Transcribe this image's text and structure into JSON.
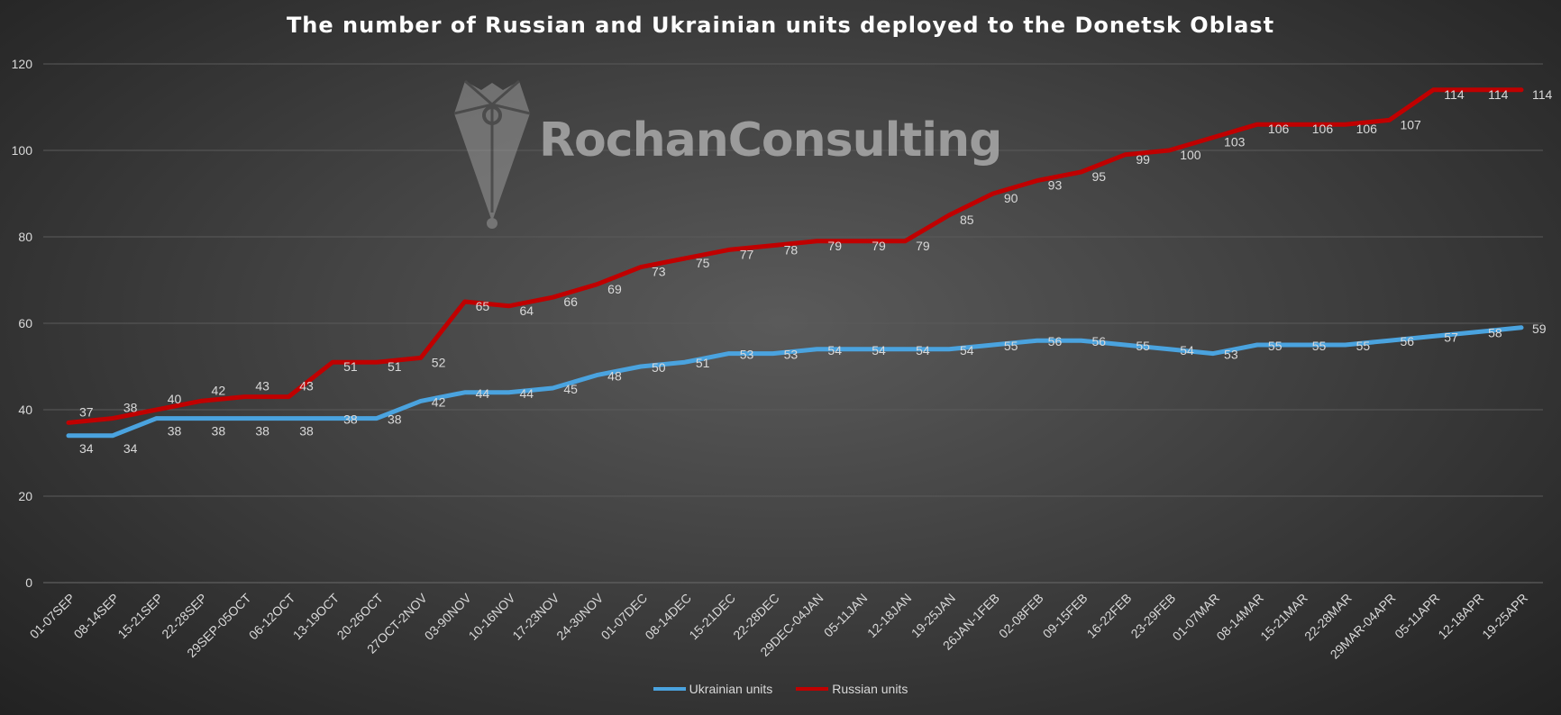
{
  "chart_data": {
    "type": "line",
    "title": "The number of Russian and Ukrainian units deployed to the Donetsk Oblast",
    "watermark": "RochanConsulting",
    "xlabel": "",
    "ylabel": "",
    "ylim": [
      0,
      120
    ],
    "yticks": [
      0,
      20,
      40,
      60,
      80,
      100,
      120
    ],
    "grid": true,
    "legend_position": "bottom",
    "categories": [
      "01-07SEP",
      "08-14SEP",
      "15-21SEP",
      "22-28SEP",
      "29SEP-05OCT",
      "06-12OCT",
      "13-19OCT",
      "20-26OCT",
      "27OCT-2NOV",
      "03-90NOV",
      "10-16NOV",
      "17-23NOV",
      "24-30NOV",
      "01-07DEC",
      "08-14DEC",
      "15-21DEC",
      "22-28DEC",
      "29DEC-04JAN",
      "05-11JAN",
      "12-18JAN",
      "19-25JAN",
      "26JAN-1FEB",
      "02-08FEB",
      "09-15FEB",
      "16-22FEB",
      "23-29FEB",
      "01-07MAR",
      "08-14MAR",
      "15-21MAR",
      "22-28MAR",
      "29MAR-04APR",
      "05-11APR",
      "12-18APR",
      "19-25APR"
    ],
    "series": [
      {
        "name": "Ukrainian units",
        "color": "#4aa3df",
        "values": [
          34,
          34,
          38,
          38,
          38,
          38,
          38,
          38,
          42,
          44,
          44,
          45,
          48,
          50,
          51,
          53,
          53,
          54,
          54,
          54,
          54,
          55,
          56,
          56,
          55,
          54,
          53,
          55,
          55,
          55,
          56,
          57,
          58,
          59
        ]
      },
      {
        "name": "Russian units",
        "color": "#c00000",
        "values": [
          37,
          38,
          40,
          42,
          43,
          43,
          51,
          51,
          52,
          65,
          64,
          66,
          69,
          73,
          75,
          77,
          78,
          79,
          79,
          79,
          85,
          90,
          93,
          95,
          99,
          100,
          103,
          106,
          106,
          106,
          107,
          114,
          114,
          114
        ]
      }
    ]
  }
}
